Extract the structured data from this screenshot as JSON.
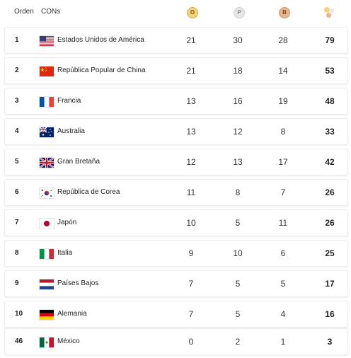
{
  "header": {
    "rank_label": "Orden",
    "country_label": "CONs",
    "gold_label": "O",
    "silver_label": "P",
    "bronze_label": "B"
  },
  "colors": {
    "gold": "#f3d07a",
    "silver": "#e6e6e6",
    "bronze": "#e7b68c"
  },
  "rows": [
    {
      "rank": "1",
      "flag": "usa-flag-icon",
      "country": "Estados Unidos de América",
      "gold": "21",
      "silver": "30",
      "bronze": "28",
      "total": "79"
    },
    {
      "rank": "2",
      "flag": "china-flag-icon",
      "country": "República Popular de China",
      "gold": "21",
      "silver": "18",
      "bronze": "14",
      "total": "53"
    },
    {
      "rank": "3",
      "flag": "france-flag-icon",
      "country": "Francia",
      "gold": "13",
      "silver": "16",
      "bronze": "19",
      "total": "48"
    },
    {
      "rank": "4",
      "flag": "australia-flag-icon",
      "country": "Australia",
      "gold": "13",
      "silver": "12",
      "bronze": "8",
      "total": "33"
    },
    {
      "rank": "5",
      "flag": "great-britain-flag-icon",
      "country": "Gran Bretaña",
      "gold": "12",
      "silver": "13",
      "bronze": "17",
      "total": "42"
    },
    {
      "rank": "6",
      "flag": "korea-flag-icon",
      "country": "República de Corea",
      "gold": "11",
      "silver": "8",
      "bronze": "7",
      "total": "26"
    },
    {
      "rank": "7",
      "flag": "japan-flag-icon",
      "country": "Japón",
      "gold": "10",
      "silver": "5",
      "bronze": "11",
      "total": "26"
    },
    {
      "rank": "8",
      "flag": "italy-flag-icon",
      "country": "Italia",
      "gold": "9",
      "silver": "10",
      "bronze": "6",
      "total": "25"
    },
    {
      "rank": "9",
      "flag": "netherlands-flag-icon",
      "country": "Países Bajos",
      "gold": "7",
      "silver": "5",
      "bronze": "5",
      "total": "17"
    },
    {
      "rank": "10",
      "flag": "germany-flag-icon",
      "country": "Alemania",
      "gold": "7",
      "silver": "5",
      "bronze": "4",
      "total": "16"
    },
    {
      "rank": "46",
      "flag": "mexico-flag-icon",
      "country": "México",
      "gold": "0",
      "silver": "2",
      "bronze": "1",
      "total": "3"
    }
  ]
}
